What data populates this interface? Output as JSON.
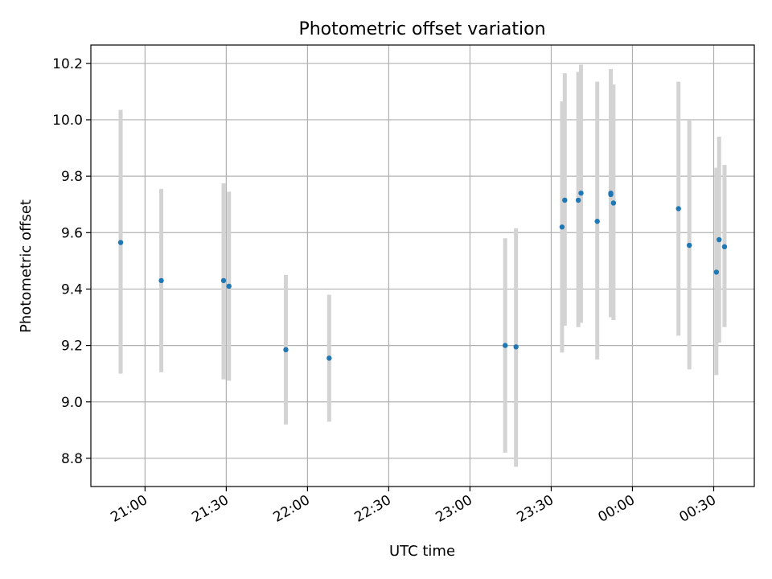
{
  "chart_data": {
    "type": "scatter",
    "title": "Photometric offset variation",
    "xlabel": "UTC time",
    "ylabel": "Photometric offset",
    "x_unit": "minutes from 00:00 UTC",
    "xlim": [
      -200,
      45
    ],
    "ylim": [
      8.7,
      10.265
    ],
    "grid": true,
    "legend": "none",
    "x_ticks": [
      {
        "value": -180,
        "label": "21:00"
      },
      {
        "value": -150,
        "label": "21:30"
      },
      {
        "value": -120,
        "label": "22:00"
      },
      {
        "value": -90,
        "label": "22:30"
      },
      {
        "value": -60,
        "label": "23:00"
      },
      {
        "value": -30,
        "label": "23:30"
      },
      {
        "value": 0,
        "label": "00:00"
      },
      {
        "value": 30,
        "label": "00:30"
      }
    ],
    "y_ticks": [
      {
        "value": 8.8,
        "label": "8.8"
      },
      {
        "value": 9.0,
        "label": "9.0"
      },
      {
        "value": 9.2,
        "label": "9.2"
      },
      {
        "value": 9.4,
        "label": "9.4"
      },
      {
        "value": 9.6,
        "label": "9.6"
      },
      {
        "value": 9.8,
        "label": "9.8"
      },
      {
        "value": 10.0,
        "label": "10.0"
      },
      {
        "value": 10.2,
        "label": "10.2"
      }
    ],
    "point_color": "#1f77b4",
    "errorbar_color": "#d3d3d3",
    "points": [
      {
        "time": "20:51",
        "x": -189,
        "y": 9.565,
        "low": 9.1,
        "high": 10.035
      },
      {
        "time": "21:06",
        "x": -174,
        "y": 9.43,
        "low": 9.105,
        "high": 9.755
      },
      {
        "time": "21:29",
        "x": -151,
        "y": 9.43,
        "low": 9.08,
        "high": 9.775
      },
      {
        "time": "21:31",
        "x": -149,
        "y": 9.41,
        "low": 9.075,
        "high": 9.745
      },
      {
        "time": "21:52",
        "x": -128,
        "y": 9.185,
        "low": 8.92,
        "high": 9.45
      },
      {
        "time": "22:08",
        "x": -112,
        "y": 9.155,
        "low": 8.93,
        "high": 9.38
      },
      {
        "time": "23:13",
        "x": -47,
        "y": 9.2,
        "low": 8.82,
        "high": 9.58
      },
      {
        "time": "23:17",
        "x": -43,
        "y": 9.195,
        "low": 8.77,
        "high": 9.615
      },
      {
        "time": "23:34",
        "x": -26,
        "y": 9.62,
        "low": 9.175,
        "high": 10.065
      },
      {
        "time": "23:35",
        "x": -25,
        "y": 9.715,
        "low": 9.27,
        "high": 10.165
      },
      {
        "time": "23:40",
        "x": -20,
        "y": 9.715,
        "low": 9.265,
        "high": 10.17
      },
      {
        "time": "23:41",
        "x": -19,
        "y": 9.74,
        "low": 9.28,
        "high": 10.195
      },
      {
        "time": "23:47",
        "x": -13,
        "y": 9.64,
        "low": 9.15,
        "high": 10.135
      },
      {
        "time": "23:52",
        "x": -8,
        "y": 9.735,
        "low": 9.3,
        "high": 10.165
      },
      {
        "time": "23:52",
        "x": -8,
        "y": 9.74,
        "low": 9.3,
        "high": 10.18
      },
      {
        "time": "23:53",
        "x": -7,
        "y": 9.705,
        "low": 9.29,
        "high": 10.125
      },
      {
        "time": "00:17",
        "x": 17,
        "y": 9.685,
        "low": 9.235,
        "high": 10.135
      },
      {
        "time": "00:21",
        "x": 21,
        "y": 9.555,
        "low": 9.115,
        "high": 10.0
      },
      {
        "time": "00:31",
        "x": 31,
        "y": 9.46,
        "low": 9.095,
        "high": 9.83
      },
      {
        "time": "00:32",
        "x": 32,
        "y": 9.575,
        "low": 9.21,
        "high": 9.94
      },
      {
        "time": "00:34",
        "x": 34,
        "y": 9.55,
        "low": 9.265,
        "high": 9.84
      }
    ]
  }
}
